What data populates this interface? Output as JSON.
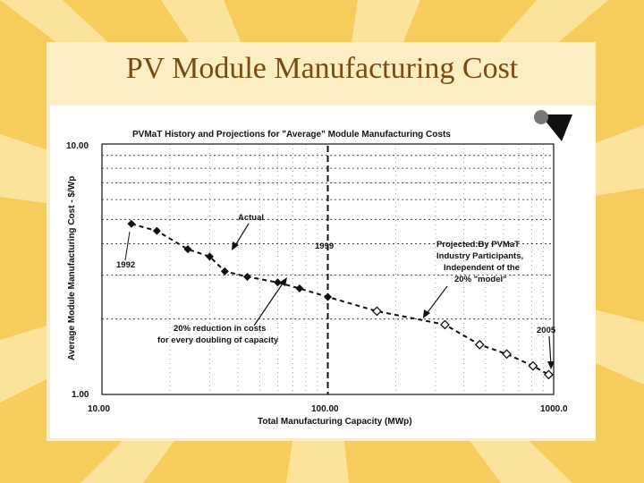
{
  "slide": {
    "title": "PV Module Manufacturing Cost"
  },
  "colors": {
    "background": "#f6cd5c",
    "card": "#fbeec2",
    "title": "#7a4a12",
    "ink": "#111111"
  },
  "chart_data": {
    "type": "scatter",
    "title": "PVMaT History and Projections for \"Average\" Module Manufacturing Costs",
    "xlabel": "Total Manufacturing Capacity (MWp)",
    "ylabel": "Average Module Manufacturing Cost - $/Wp",
    "xscale": "log",
    "yscale": "log",
    "xlim": [
      10,
      1000
    ],
    "ylim": [
      1,
      10
    ],
    "x_ticks": [
      "10.00",
      "100.00",
      "1000.0"
    ],
    "y_ticks": [
      "10.00",
      "1.00"
    ],
    "grid": true,
    "series": [
      {
        "name": "Actual",
        "marker": "filled-diamond",
        "points": [
          [
            13.5,
            4.8
          ],
          [
            17.5,
            4.5
          ],
          [
            24,
            3.8
          ],
          [
            30,
            3.55
          ],
          [
            35,
            3.1
          ],
          [
            44,
            2.95
          ],
          [
            60,
            2.8
          ],
          [
            75,
            2.65
          ],
          [
            100,
            2.45
          ]
        ]
      },
      {
        "name": "Projected",
        "marker": "open-diamond",
        "points": [
          [
            165,
            2.15
          ],
          [
            330,
            1.9
          ],
          [
            470,
            1.58
          ],
          [
            620,
            1.45
          ],
          [
            810,
            1.3
          ],
          [
            950,
            1.2
          ]
        ]
      }
    ],
    "trend": {
      "type": "dashed",
      "x": [
        13.5,
        950
      ],
      "y": [
        4.8,
        1.2
      ]
    },
    "vline": {
      "x": 100,
      "label": "1999"
    },
    "annotations": [
      {
        "text": "Actual"
      },
      {
        "text": "1992"
      },
      {
        "text": "1999"
      },
      {
        "text": "Projected:By PVMaT"
      },
      {
        "text": "Industry Participants,"
      },
      {
        "text": "Independent of the"
      },
      {
        "text": "20% \"model\""
      },
      {
        "text": "20% reduction in costs"
      },
      {
        "text": "for every doubling of capacity"
      },
      {
        "text": "2005"
      }
    ]
  }
}
